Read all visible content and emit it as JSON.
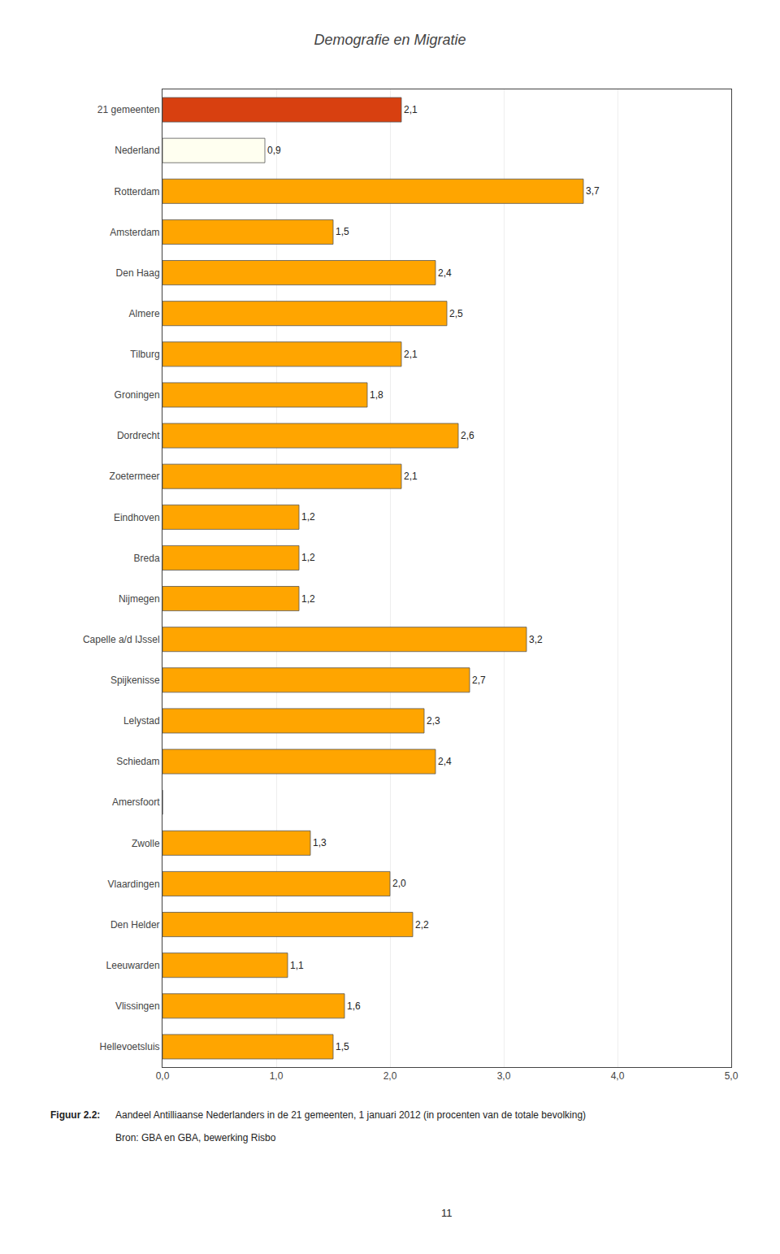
{
  "chart_data": {
    "type": "bar",
    "orientation": "horizontal",
    "title": "Demografie en Migratie",
    "categories": [
      "21 gemeenten",
      "Nederland",
      "Rotterdam",
      "Amsterdam",
      "Den Haag",
      "Almere",
      "Tilburg",
      "Groningen",
      "Dordrecht",
      "Zoetermeer",
      "Eindhoven",
      "Breda",
      "Nijmegen",
      "Capelle a/d IJssel",
      "Spijkenisse",
      "Lelystad",
      "Schiedam",
      "Amersfoort",
      "Zwolle",
      "Vlaardingen",
      "Den Helder",
      "Leeuwarden",
      "Vlissingen",
      "Hellevoetsluis"
    ],
    "values": [
      2.1,
      0.9,
      3.7,
      1.5,
      2.4,
      2.5,
      2.1,
      1.8,
      2.6,
      2.1,
      1.2,
      1.2,
      1.2,
      3.2,
      2.7,
      2.3,
      2.4,
      0,
      1.3,
      2.0,
      2.2,
      1.1,
      1.6,
      1.5
    ],
    "value_labels": [
      "2,1",
      "0,9",
      "3,7",
      "1,5",
      "2,4",
      "2,5",
      "2,1",
      "1,8",
      "2,6",
      "2,1",
      "1,2",
      "1,2",
      "1,2",
      "3,2",
      "2,7",
      "2,3",
      "2,4",
      null,
      "1,3",
      "2,0",
      "2,2",
      "1,1",
      "1,6",
      "1,5"
    ],
    "data_labels": true,
    "colors": [
      "#D84010",
      "#FFFFF0",
      "#FFA500",
      "#FFA500",
      "#FFA500",
      "#FFA500",
      "#FFA500",
      "#FFA500",
      "#FFA500",
      "#FFA500",
      "#FFA500",
      "#FFA500",
      "#FFA500",
      "#FFA500",
      "#FFA500",
      "#FFA500",
      "#FFA500",
      "#FFA500",
      "#FFA500",
      "#FFA500",
      "#FFA500",
      "#FFA500",
      "#FFA500",
      "#FFA500"
    ],
    "xlim": [
      0,
      5.0
    ],
    "xticks": [
      {
        "value": 0.0,
        "label": "0,0"
      },
      {
        "value": 1.0,
        "label": "1,0"
      },
      {
        "value": 2.0,
        "label": "2,0"
      },
      {
        "value": 3.0,
        "label": "3,0"
      },
      {
        "value": 4.0,
        "label": "4,0"
      },
      {
        "value": 5.0,
        "label": "5,0"
      }
    ],
    "grid": true,
    "annotations": [
      "Figuur 2.2:",
      "Aandeel Antilliaanse Nederlanders in de 21 gemeenten, 1 januari 2012 (in procenten van de totale bevolking)",
      "Bron: GBA en GBA, bewerking Risbo",
      "11"
    ]
  }
}
